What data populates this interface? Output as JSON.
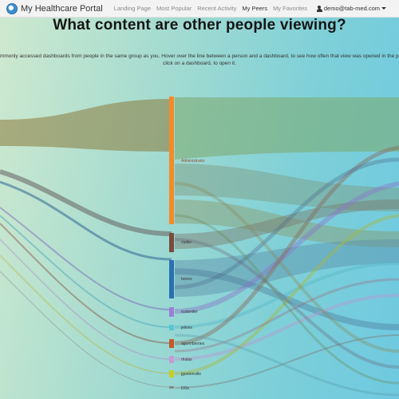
{
  "navbar": {
    "brand": "My Healthcare Portal",
    "links": [
      {
        "label": "Landing Page",
        "active": false
      },
      {
        "label": "Most Popular",
        "active": false
      },
      {
        "label": "Recent Activity",
        "active": false
      },
      {
        "label": "My Peers",
        "active": true
      },
      {
        "label": "My Favorites",
        "active": false
      }
    ],
    "user": "demo@tab-med.com"
  },
  "page": {
    "title": "What content are other people viewing?",
    "description_line1": "Commonly accessed dashboards from people in the same group as you. Hover over the line between a person and a dashboard, to see how often that view was opened in the past",
    "description_line2": "click on a dashboard, to open it."
  },
  "sankey": {
    "nodes": [
      {
        "label": "Administrator",
        "color": "#f58a26"
      },
      {
        "label": "ctalke",
        "color": "#7a4b3c"
      },
      {
        "label": "bonns",
        "color": "#2b6fb4"
      },
      {
        "label": "rcalander",
        "color": "#9b7fd6"
      },
      {
        "label": "jeikins",
        "color": "#56c7d6"
      },
      {
        "label": "agunnberries",
        "color": "#c7582c"
      },
      {
        "label": "rholas",
        "color": "#c39bd6"
      },
      {
        "label": "jguntenville",
        "color": "#c9cc2a"
      },
      {
        "label": "DOz",
        "color": "#888888"
      }
    ]
  }
}
